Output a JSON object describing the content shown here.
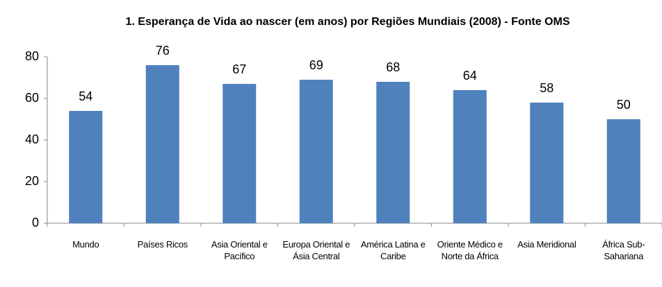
{
  "chart_data": {
    "type": "bar",
    "title": "1. Esperança de Vida ao nascer (em anos) por Regiões Mundiais (2008) - Fonte OMS",
    "categories": [
      "Mundo",
      "Países Ricos",
      "Asia Oriental e Pacífico",
      "Europa Oriental e Ásia Central",
      "América Latina e Caribe",
      "Oriente Médico e Norte da África",
      "Asia Meridional",
      "África Sub-Sahariana"
    ],
    "values": [
      54,
      76,
      67,
      69,
      68,
      64,
      58,
      50
    ],
    "color": "#4f81bd",
    "ylim": [
      0,
      80
    ],
    "yticks": [
      0,
      20,
      40,
      60,
      80
    ],
    "grid": false
  }
}
